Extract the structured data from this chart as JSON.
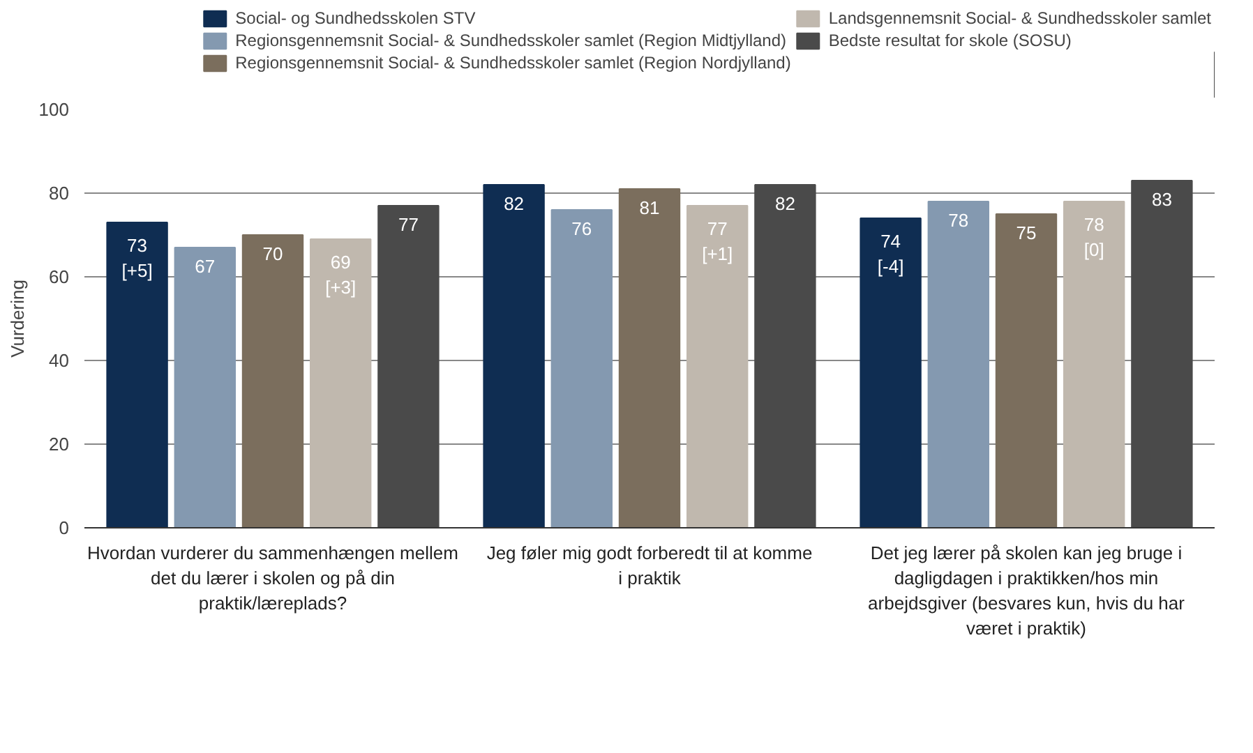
{
  "chart_data": {
    "type": "bar",
    "ylabel": "Vurdering",
    "categories": [
      "Hvordan vurderer du sammenhængen mellem det du lærer i skolen og på din praktik/læreplads?",
      "Jeg føler mig godt forberedt til at komme i praktik",
      "Det jeg lærer på skolen kan jeg bruge i dagligdagen i praktikken/hos min arbejdsgiver (besvares kun, hvis du har været i praktik)"
    ],
    "series": [
      {
        "name": "Social- og Sundhedsskolen STV",
        "color": "#0f2d52",
        "values": [
          73,
          82,
          74
        ],
        "value_labels": [
          "73\n[+5]",
          "82",
          "74\n[-4]"
        ]
      },
      {
        "name": "Regionsgennemsnit Social- & Sundhedsskoler samlet (Region Midtjylland)",
        "color": "#8499b0",
        "values": [
          67,
          76,
          78
        ],
        "value_labels": [
          "67",
          "76",
          "78"
        ]
      },
      {
        "name": "Regionsgennemsnit Social- & Sundhedsskoler samlet (Region Nordjylland)",
        "color": "#7b6e5d",
        "values": [
          70,
          81,
          75
        ],
        "value_labels": [
          "70",
          "81",
          "75"
        ]
      },
      {
        "name": "Landsgennemsnit Social- & Sundhedsskoler samlet",
        "color": "#c0b8ae",
        "values": [
          69,
          77,
          78
        ],
        "value_labels": [
          "69\n[+3]",
          "77\n[+1]",
          "78\n[0]"
        ]
      },
      {
        "name": "Bedste resultat for skole (SOSU)",
        "color": "#4a4a4a",
        "values": [
          77,
          82,
          83
        ],
        "value_labels": [
          "77",
          "82",
          "83"
        ]
      }
    ],
    "ylim": [
      0,
      100
    ],
    "yticks": [
      0,
      20,
      40,
      60,
      80,
      100
    ],
    "grid": "y",
    "legend": "top right"
  }
}
